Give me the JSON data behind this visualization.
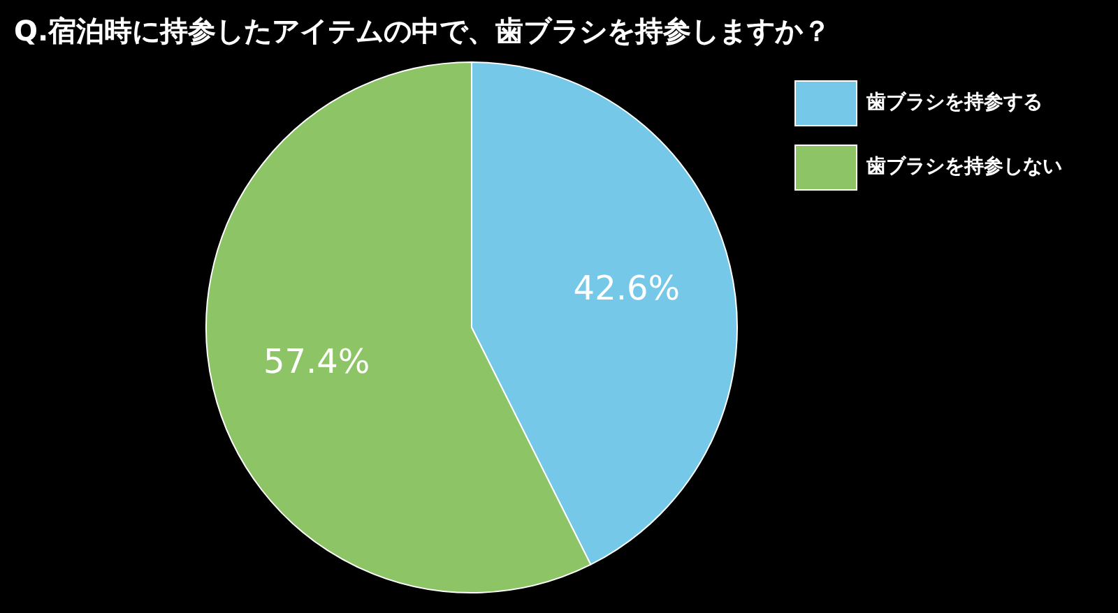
{
  "chart_data": {
    "type": "pie",
    "title": "Q.宿泊時に持参したアイテムの中で、歯ブラシを持参しますか？",
    "categories": [
      "歯ブラシを持参する",
      "歯ブラシを持参しない"
    ],
    "values": [
      42.6,
      57.4
    ],
    "colors": [
      "#75c8e8",
      "#8cc466"
    ],
    "value_labels": [
      "42.6%",
      "57.4%"
    ],
    "legend": "right"
  }
}
